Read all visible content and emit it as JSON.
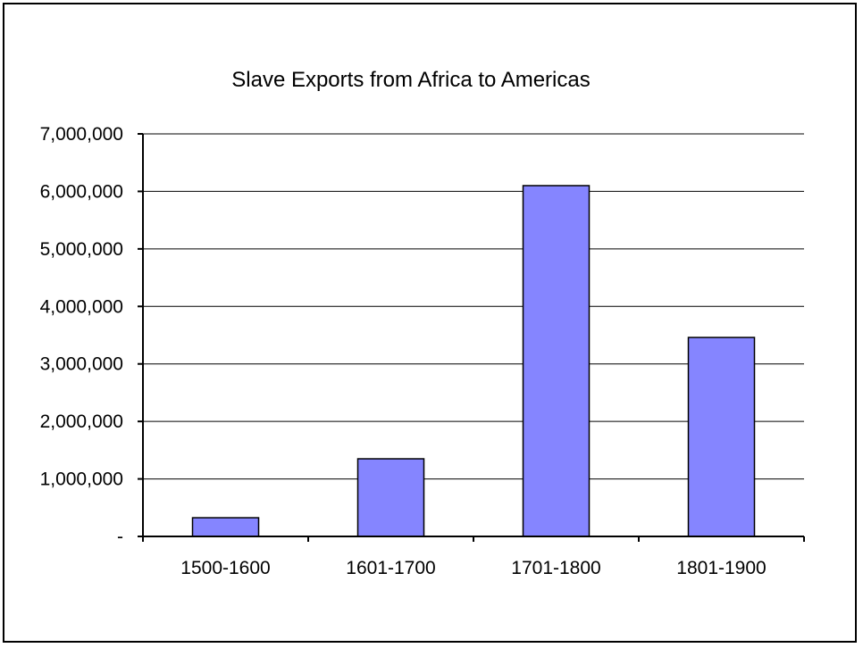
{
  "chart_data": {
    "type": "bar",
    "title": "Slave Exports from Africa to Americas",
    "xlabel": "",
    "ylabel": "",
    "categories": [
      "1500-1600",
      "1601-1700",
      "1701-1800",
      "1801-1900"
    ],
    "values": [
      325000,
      1350000,
      6100000,
      3460000
    ],
    "ylim": [
      0,
      7000000
    ],
    "yticks": [
      0,
      1000000,
      2000000,
      3000000,
      4000000,
      5000000,
      6000000,
      7000000
    ],
    "ytick_labels": [
      "-",
      "1,000,000",
      "2,000,000",
      "3,000,000",
      "4,000,000",
      "5,000,000",
      "6,000,000",
      "7,000,000"
    ],
    "grid": true,
    "legend": "none",
    "bar_color": "#8585ff",
    "bar_edge_color": "#000000"
  }
}
